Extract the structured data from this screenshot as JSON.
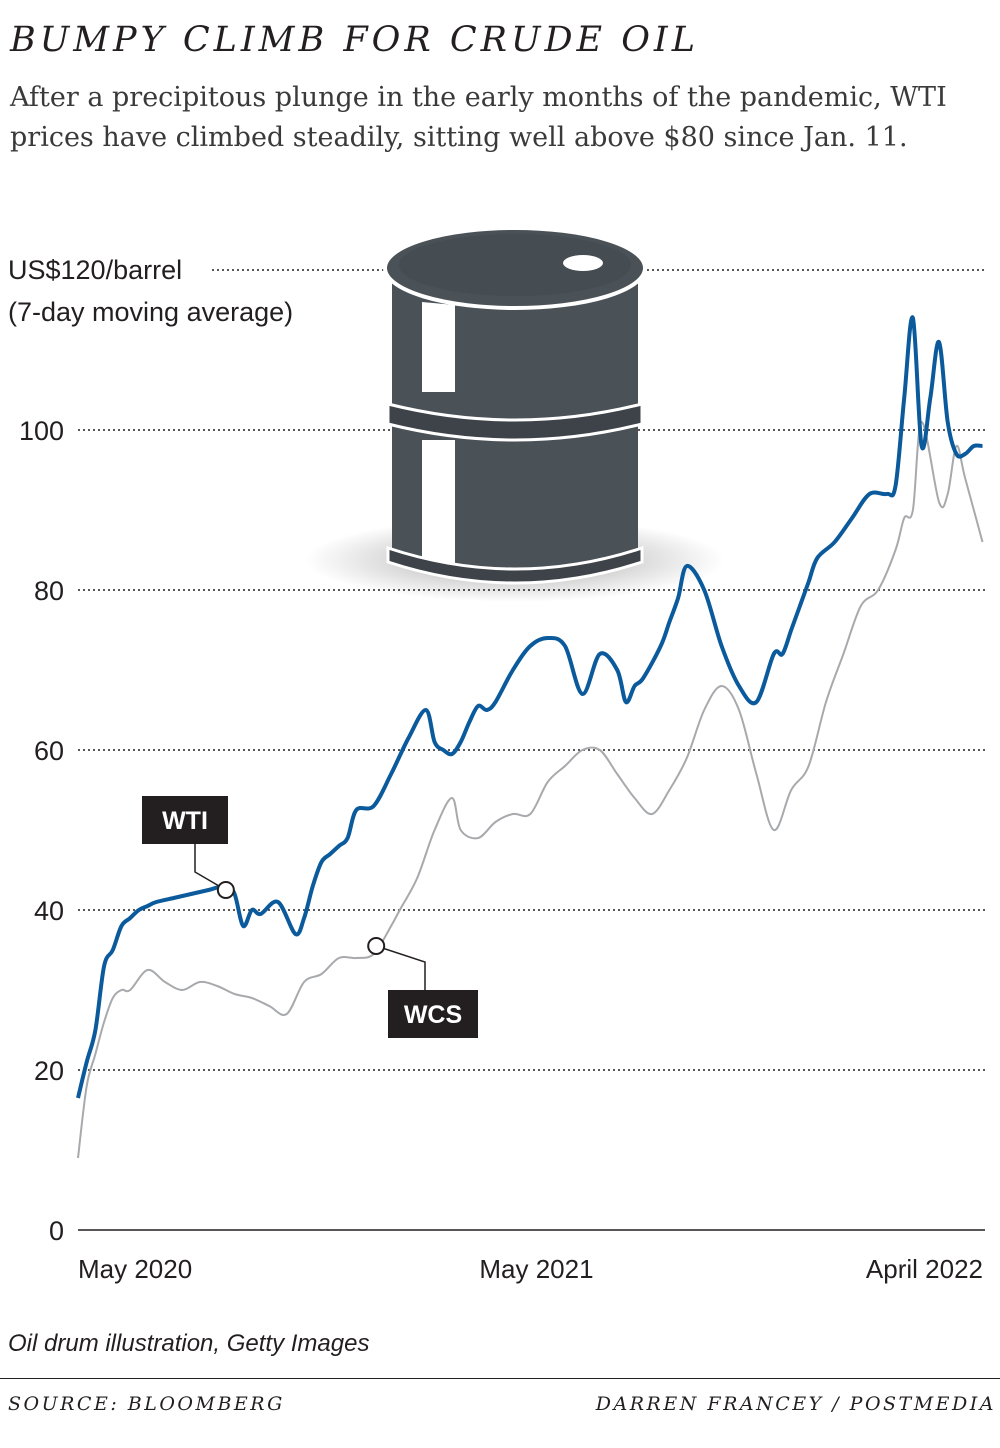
{
  "title": "BUMPY CLIMB FOR CRUDE OIL",
  "subtitle": "After a precipitous plunge in the early months of the pandemic, WTI prices have climbed steadily, sitting well above $80 since Jan. 11.",
  "credit": "Oil drum illustration, Getty Images",
  "footer": {
    "source": "SOURCE: BLOOMBERG",
    "byline": "DARREN FRANCEY / POSTMEDIA"
  },
  "colors": {
    "wti": "#0b5a9c",
    "wcs": "#a7a9ac",
    "drum": "#4a5157",
    "text": "#231f20"
  },
  "illustration": {
    "icon": "oil-drum-icon"
  },
  "chart_data": {
    "type": "line",
    "ylabel": "US$120/barrel",
    "ylabel_sub": "(7-day moving average)",
    "ylim": [
      0,
      120
    ],
    "yticks": [
      0,
      20,
      40,
      60,
      80,
      100,
      120
    ],
    "ytick_labels": [
      "0",
      "20",
      "40",
      "60",
      "80",
      "100",
      ""
    ],
    "xlim": [
      "2020-04-27",
      "2022-04-27"
    ],
    "xticks": [
      {
        "date": "2020-05-01",
        "label": "May 2020"
      },
      {
        "date": "2021-05-01",
        "label": "May 2021"
      },
      {
        "date": "2022-04-01",
        "label": "April 2022"
      }
    ],
    "grid": true,
    "annotations": [
      {
        "series": "WTI",
        "date": "2020-08-24",
        "value": 42.5
      },
      {
        "series": "WCS",
        "date": "2020-12-23",
        "value": 35.5
      }
    ],
    "series": [
      {
        "name": "WTI",
        "dates": [
          "2020-04-27",
          "2020-05-04",
          "2020-05-11",
          "2020-05-18",
          "2020-05-25",
          "2020-06-01",
          "2020-06-08",
          "2020-06-15",
          "2020-06-22",
          "2020-06-29",
          "2020-07-13",
          "2020-07-27",
          "2020-08-10",
          "2020-08-24",
          "2020-08-31",
          "2020-09-07",
          "2020-09-14",
          "2020-09-21",
          "2020-10-05",
          "2020-10-19",
          "2020-10-26",
          "2020-11-02",
          "2020-11-09",
          "2020-11-16",
          "2020-11-23",
          "2020-11-30",
          "2020-12-07",
          "2020-12-21",
          "2021-01-04",
          "2021-01-18",
          "2021-02-01",
          "2021-02-08",
          "2021-02-15",
          "2021-02-22",
          "2021-03-01",
          "2021-03-08",
          "2021-03-15",
          "2021-03-22",
          "2021-03-29",
          "2021-04-12",
          "2021-04-26",
          "2021-05-10",
          "2021-05-24",
          "2021-06-07",
          "2021-06-21",
          "2021-07-05",
          "2021-07-12",
          "2021-07-19",
          "2021-07-26",
          "2021-08-09",
          "2021-08-16",
          "2021-08-23",
          "2021-08-30",
          "2021-09-13",
          "2021-09-27",
          "2021-10-11",
          "2021-10-25",
          "2021-11-08",
          "2021-11-15",
          "2021-11-22",
          "2021-11-29",
          "2021-12-06",
          "2021-12-13",
          "2021-12-27",
          "2022-01-10",
          "2022-01-24",
          "2022-02-07",
          "2022-02-14",
          "2022-02-21",
          "2022-02-28",
          "2022-03-07",
          "2022-03-14",
          "2022-03-21",
          "2022-03-28",
          "2022-04-04",
          "2022-04-11",
          "2022-04-18",
          "2022-04-25"
        ],
        "values": [
          16.5,
          21,
          25,
          33,
          35,
          38,
          39,
          40,
          40.5,
          41,
          41.5,
          42,
          42.5,
          43,
          42,
          38,
          40,
          39.5,
          41,
          37,
          39,
          43,
          46,
          47,
          48,
          49,
          52.5,
          53,
          57,
          61.5,
          65,
          61,
          60,
          59.5,
          61,
          63.5,
          65.5,
          65,
          66,
          70,
          73,
          74,
          73,
          67,
          72,
          70,
          66,
          68,
          69,
          73,
          76,
          79,
          83,
          80,
          73,
          68,
          66,
          72,
          72,
          75,
          78,
          81,
          84,
          86,
          89,
          92,
          92,
          93,
          104,
          114,
          98,
          104,
          111,
          101,
          97,
          97,
          98,
          98
        ]
      },
      {
        "name": "WCS",
        "dates": [
          "2020-04-27",
          "2020-05-04",
          "2020-05-11",
          "2020-05-18",
          "2020-05-25",
          "2020-06-01",
          "2020-06-08",
          "2020-06-22",
          "2020-07-06",
          "2020-07-20",
          "2020-08-03",
          "2020-08-17",
          "2020-08-31",
          "2020-09-14",
          "2020-09-28",
          "2020-10-12",
          "2020-10-26",
          "2020-11-09",
          "2020-11-23",
          "2020-12-07",
          "2020-12-21",
          "2021-01-04",
          "2021-01-11",
          "2021-01-25",
          "2021-02-08",
          "2021-02-22",
          "2021-03-01",
          "2021-03-15",
          "2021-03-29",
          "2021-04-12",
          "2021-04-26",
          "2021-05-10",
          "2021-05-24",
          "2021-06-07",
          "2021-06-21",
          "2021-07-05",
          "2021-07-19",
          "2021-08-02",
          "2021-08-16",
          "2021-08-30",
          "2021-09-13",
          "2021-09-27",
          "2021-10-11",
          "2021-10-25",
          "2021-11-08",
          "2021-11-22",
          "2021-12-06",
          "2021-12-20",
          "2022-01-03",
          "2022-01-17",
          "2022-01-31",
          "2022-02-14",
          "2022-02-21",
          "2022-02-28",
          "2022-03-07",
          "2022-03-21",
          "2022-03-28",
          "2022-04-04",
          "2022-04-11",
          "2022-04-25"
        ],
        "values": [
          9,
          18,
          22,
          26,
          29,
          30,
          30,
          32.5,
          31,
          30,
          31,
          30.5,
          29.5,
          29,
          28,
          27,
          31,
          32,
          34,
          34,
          34.5,
          38,
          40,
          44,
          50,
          54,
          50,
          49,
          51,
          52,
          52,
          56,
          58,
          60,
          60,
          57,
          54,
          52,
          55,
          59,
          65,
          68,
          65,
          57,
          50,
          55,
          58,
          66,
          72,
          78,
          80,
          85,
          89,
          90,
          101,
          91,
          92,
          98,
          94,
          86
        ]
      }
    ]
  }
}
